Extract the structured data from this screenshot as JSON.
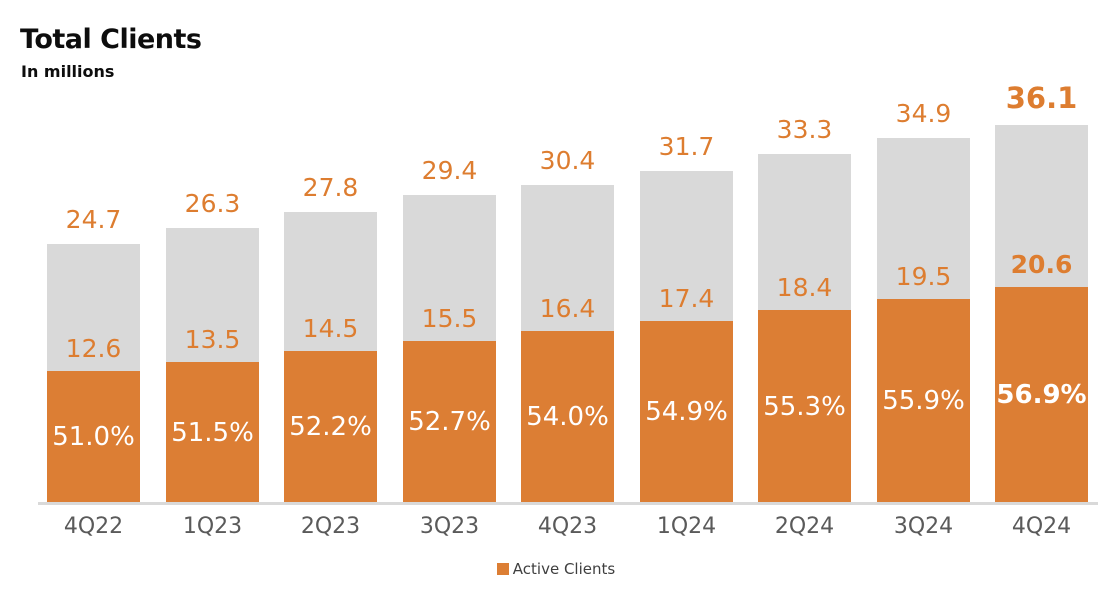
{
  "header": {
    "title": "Total Clients",
    "subtitle": "In millions"
  },
  "legend": {
    "label": "Active Clients",
    "marker_color": "#DC7E34"
  },
  "colors": {
    "active_bar": "#DC7E34",
    "total_bar": "#D9D9D9",
    "axis_line": "#D9D9D9",
    "value_labels": "#DD7D30",
    "pct_labels": "#FFFFFF",
    "tick_labels": "#5A5A5A",
    "title_text": "#0D0D0D"
  },
  "chart_data": {
    "type": "bar",
    "stacked": true,
    "title": "Total Clients",
    "subtitle": "In millions",
    "categories": [
      "4Q22",
      "1Q23",
      "2Q23",
      "3Q23",
      "4Q23",
      "1Q24",
      "2Q24",
      "3Q24",
      "4Q24"
    ],
    "series": [
      {
        "name": "Active Clients",
        "values": [
          12.6,
          13.5,
          14.5,
          15.5,
          16.4,
          17.4,
          18.4,
          19.5,
          20.6
        ],
        "color": "#DC7E34"
      }
    ],
    "totals": [
      24.7,
      26.3,
      27.8,
      29.4,
      30.4,
      31.7,
      33.3,
      34.9,
      36.1
    ],
    "total_labels": [
      "24.7",
      "26.3",
      "27.8",
      "29.4",
      "30.4",
      "31.7",
      "33.3",
      "34.9",
      "36.1"
    ],
    "active_labels": [
      "12.6",
      "13.5",
      "14.5",
      "15.5",
      "16.4",
      "17.4",
      "18.4",
      "19.5",
      "20.6"
    ],
    "active_pct_labels": [
      "51.0%",
      "51.5%",
      "52.2%",
      "52.7%",
      "54.0%",
      "54.9%",
      "55.3%",
      "55.9%",
      "56.9%"
    ],
    "highlight_last": true,
    "ylim": [
      0,
      36.1
    ],
    "grid": false,
    "legend_position": "bottom",
    "legend_entries": [
      "Active Clients"
    ]
  }
}
